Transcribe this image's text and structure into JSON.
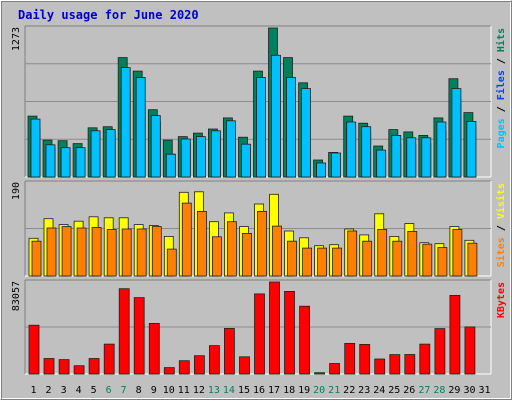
{
  "title": "Daily usage for June 2020",
  "colors": {
    "frame": "#c0c0c0",
    "plot_bg": "#c0c0c0",
    "title": "#0000cc",
    "hits": "#00805c",
    "files": "#0040ff",
    "pages": "#00c0ff",
    "visits": "#ffff00",
    "sites": "#ff8000",
    "kbytes": "#ff0000",
    "weekend": "#00805c",
    "weekday": "#000000"
  },
  "chart_data": [
    {
      "type": "bar",
      "panel": "hits-files-pages",
      "ymax_label": "1273",
      "ylim": [
        0,
        1273
      ],
      "legend": [
        {
          "label": "Pages",
          "color": "#00c0ff"
        },
        {
          "label": "Files",
          "color": "#0040ff"
        },
        {
          "label": "Hits",
          "color": "#00805c"
        }
      ],
      "categories": [
        "1",
        "2",
        "3",
        "4",
        "5",
        "6",
        "7",
        "8",
        "9",
        "10",
        "11",
        "12",
        "13",
        "14",
        "15",
        "16",
        "17",
        "18",
        "19",
        "20",
        "21",
        "22",
        "23",
        "24",
        "25",
        "26",
        "27",
        "28",
        "29",
        "30",
        "31"
      ],
      "series": [
        {
          "name": "Hits",
          "values": [
            520,
            315,
            310,
            285,
            420,
            430,
            1020,
            905,
            575,
            315,
            345,
            375,
            410,
            505,
            340,
            905,
            1273,
            1020,
            805,
            145,
            210,
            520,
            460,
            265,
            405,
            385,
            355,
            505,
            840,
            550,
            0
          ]
        },
        {
          "name": "Files",
          "values": [
            410,
            240,
            240,
            205,
            340,
            345,
            745,
            605,
            470,
            195,
            285,
            300,
            345,
            385,
            250,
            685,
            820,
            715,
            610,
            100,
            150,
            420,
            380,
            190,
            280,
            275,
            285,
            395,
            665,
            430,
            0
          ]
        },
        {
          "name": "Pages",
          "values": [
            495,
            275,
            250,
            250,
            395,
            405,
            935,
            850,
            525,
            195,
            325,
            345,
            395,
            480,
            280,
            850,
            1040,
            850,
            755,
            120,
            205,
            470,
            430,
            230,
            355,
            335,
            335,
            470,
            755,
            475,
            0
          ]
        }
      ]
    },
    {
      "type": "bar",
      "panel": "visits-sites",
      "ymax_label": "190",
      "ylim": [
        0,
        190
      ],
      "legend": [
        {
          "label": "Sites",
          "color": "#ff8000"
        },
        {
          "label": "Visits",
          "color": "#ffff00"
        }
      ],
      "categories": [
        "1",
        "2",
        "3",
        "4",
        "5",
        "6",
        "7",
        "8",
        "9",
        "10",
        "11",
        "12",
        "13",
        "14",
        "15",
        "16",
        "17",
        "18",
        "19",
        "20",
        "21",
        "22",
        "23",
        "24",
        "25",
        "26",
        "27",
        "28",
        "29",
        "30",
        "31"
      ],
      "series": [
        {
          "name": "Visits",
          "values": [
            77,
            117,
            105,
            112,
            121,
            119,
            119,
            105,
            103,
            81,
            171,
            172,
            111,
            129,
            101,
            147,
            167,
            92,
            78,
            62,
            64,
            96,
            84,
            127,
            81,
            107,
            68,
            66,
            101,
            73,
            0
          ]
        },
        {
          "name": "Sites",
          "values": [
            71,
            98,
            101,
            98,
            99,
            95,
            96,
            96,
            101,
            55,
            149,
            132,
            80,
            111,
            87,
            132,
            102,
            71,
            57,
            57,
            57,
            92,
            71,
            95,
            71,
            91,
            65,
            58,
            95,
            67,
            0
          ]
        }
      ]
    },
    {
      "type": "bar",
      "panel": "kbytes",
      "ymax_label": "83057",
      "ylim": [
        0,
        83057
      ],
      "legend": [
        {
          "label": "KBytes",
          "color": "#ff0000"
        }
      ],
      "categories": [
        "1",
        "2",
        "3",
        "4",
        "5",
        "6",
        "7",
        "8",
        "9",
        "10",
        "11",
        "12",
        "13",
        "14",
        "15",
        "16",
        "17",
        "18",
        "19",
        "20",
        "21",
        "22",
        "23",
        "24",
        "25",
        "26",
        "27",
        "28",
        "29",
        "30",
        "31"
      ],
      "series": [
        {
          "name": "KBytes",
          "values": [
            44100,
            14000,
            13000,
            7500,
            14000,
            27000,
            77000,
            69000,
            45700,
            5800,
            12000,
            16500,
            25600,
            41200,
            15500,
            72300,
            83057,
            74600,
            61200,
            1200,
            9500,
            27600,
            26700,
            13500,
            17500,
            17600,
            27000,
            41000,
            71000,
            42500,
            0
          ]
        }
      ]
    }
  ],
  "weekend_days": [
    6,
    7,
    13,
    14,
    20,
    21,
    27,
    28
  ]
}
